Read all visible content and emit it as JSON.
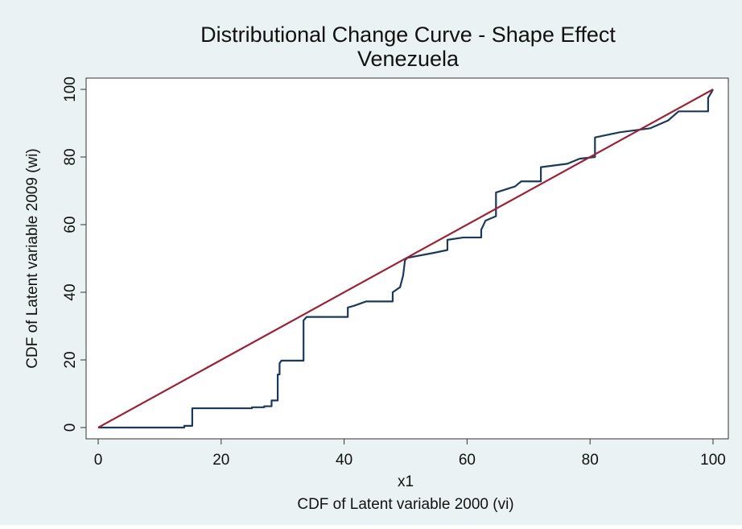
{
  "chart_data": {
    "type": "line",
    "title": "Distributional Change Curve - Shape Effect",
    "subtitle": "Venezuela",
    "x_axis_label": "x1",
    "x_axis_title": "CDF of Latent variable 2000 (vi)",
    "y_axis_title": "CDF of Latent variable 2009 (wi)",
    "xlim": [
      0,
      100
    ],
    "xticks": [
      0,
      20,
      40,
      60,
      80,
      100
    ],
    "ylim": [
      0,
      100
    ],
    "yticks": [
      0,
      20,
      40,
      60,
      80,
      100
    ],
    "series": [
      {
        "color": "#1a3a5c",
        "x": [
          0,
          14,
          14,
          15.3,
          15.3,
          25,
          25,
          27,
          27,
          28.2,
          28.2,
          29.2,
          29.2,
          29.5,
          29.5,
          29.8,
          33.4,
          33.4,
          33.9,
          40.6,
          40.6,
          41.6,
          43.6,
          47.9,
          47.9,
          49.1,
          49.6,
          49.9,
          50.3,
          54.7,
          56.8,
          56.8,
          59.4,
          62.3,
          62.3,
          63,
          64.7,
          64.7,
          67.8,
          68.8,
          72,
          72,
          76.3,
          78.3,
          80.8,
          80.8,
          84.8,
          89.8,
          92.7,
          94.4,
          99.2,
          99.2,
          99.7,
          100
        ],
        "values": [
          0,
          0,
          0.5,
          0.5,
          5.7,
          5.7,
          6,
          6,
          6.3,
          6.3,
          8,
          8,
          15.7,
          15.7,
          19,
          19.8,
          19.8,
          31.7,
          32.7,
          32.7,
          35.5,
          36,
          37.3,
          37.3,
          40,
          41.5,
          45,
          49.5,
          50.2,
          51.7,
          52.5,
          55.5,
          56.2,
          56.2,
          58.5,
          61.2,
          62.5,
          69.5,
          71.3,
          72.8,
          72.8,
          77,
          78,
          79.5,
          80,
          85.8,
          87.3,
          88.5,
          90.8,
          93.5,
          93.5,
          97.5,
          99,
          100
        ]
      },
      {
        "color": "#9b2335",
        "x": [
          0,
          100
        ],
        "values": [
          0,
          100
        ]
      }
    ]
  }
}
